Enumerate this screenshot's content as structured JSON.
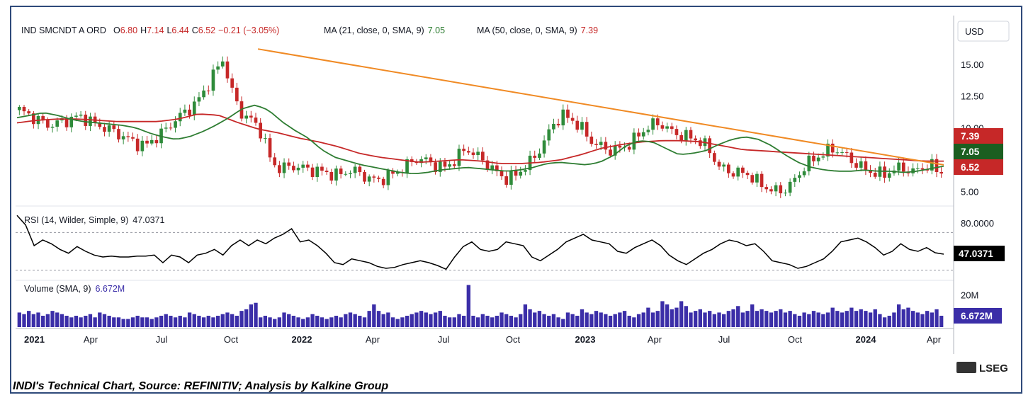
{
  "header": {
    "symbol": "IND SMCNDT A ORD",
    "o_label": "O",
    "o_value": "6.80",
    "h_label": "H",
    "h_value": "7.14",
    "l_label": "L",
    "l_value": "6.44",
    "c_label": "C",
    "c_value": "6.52",
    "change": "−0.21 (−3.05%)",
    "ma21_label": "MA (21, close, 0, SMA, 9)",
    "ma21_value": "7.05",
    "ma50_label": "MA (50, close, 0, SMA, 9)",
    "ma50_value": "7.39"
  },
  "currency": "USD",
  "rsi_label": "RSI (14, Wilder, Simple, 9)",
  "rsi_value": "47.0371",
  "volume_label": "Volume (SMA, 9)",
  "volume_value": "6.672M",
  "badges": {
    "ma50": "7.39",
    "ma21": "7.05",
    "close": "6.52",
    "rsi": "47.0371",
    "volume": "6.672M"
  },
  "brand": "LSEG",
  "caption": "INDI's Technical Chart, Source: REFINITIV; Analysis by Kalkine Group",
  "colors": {
    "up": "#2e8b3a",
    "down": "#c62828",
    "ma21": "#2e7d32",
    "ma50": "#c62828",
    "trendline": "#f08a24",
    "rsi": "#000000",
    "volume": "#3b2ea8",
    "frame": "#2f4a7a"
  },
  "chart_data": [
    {
      "type": "candlestick",
      "title": "IND SMCNDT A ORD",
      "x_ticks": [
        "2021",
        "Apr",
        "Jul",
        "Oct",
        "2022",
        "Apr",
        "Jul",
        "Oct",
        "2023",
        "Apr",
        "Jul",
        "Oct",
        "2024",
        "Apr"
      ],
      "y_ticks": [
        "15.00",
        "12.50",
        "10.00",
        "5.00"
      ],
      "ylim": [
        4.2,
        16.6
      ],
      "close_path": [
        11.4,
        11.0,
        10.6,
        10.2,
        10.4,
        10.6,
        10.9,
        10.7,
        10.2,
        10.0,
        9.6,
        9.2,
        8.8,
        8.6,
        9.2,
        9.8,
        10.6,
        11.2,
        11.8,
        12.8,
        14.2,
        15.4,
        12.6,
        11.0,
        10.6,
        9.6,
        7.2,
        6.8,
        7.0,
        6.9,
        6.7,
        6.6,
        6.4,
        6.3,
        6.7,
        6.5,
        6.0,
        5.9,
        6.2,
        6.6,
        7.1,
        7.6,
        7.4,
        7.0,
        6.9,
        7.6,
        8.4,
        7.9,
        7.3,
        6.6,
        6.0,
        6.2,
        6.9,
        7.6,
        8.8,
        10.3,
        11.0,
        10.6,
        9.9,
        8.9,
        8.5,
        8.2,
        8.4,
        8.8,
        9.6,
        10.2,
        10.4,
        9.8,
        9.4,
        9.3,
        9.0,
        8.4,
        7.0,
        6.6,
        6.5,
        6.4,
        5.8,
        5.3,
        5.0,
        5.2,
        6.0,
        7.1,
        7.6,
        8.1,
        8.4,
        7.9,
        7.3,
        6.8,
        6.5,
        6.3,
        6.7,
        6.9,
        6.5,
        6.9,
        7.0,
        6.52
      ],
      "ma21_path": [
        10.8,
        11.0,
        11.2,
        11.0,
        10.7,
        10.5,
        10.4,
        10.3,
        10.2,
        10.0,
        9.6,
        9.3,
        9.1,
        9.3,
        9.7,
        10.2,
        10.8,
        11.5,
        11.8,
        11.4,
        10.5,
        9.8,
        9.2,
        8.3,
        7.7,
        7.4,
        7.1,
        6.9,
        6.7,
        6.5,
        6.4,
        6.5,
        6.7,
        6.8,
        6.9,
        6.8,
        6.7,
        6.6,
        6.7,
        6.9,
        7.2,
        7.3,
        7.2,
        7.1,
        7.3,
        7.8,
        8.6,
        9.0,
        8.9,
        8.4,
        7.9,
        8.0,
        8.2,
        8.7,
        9.1,
        9.3,
        9.1,
        8.6,
        7.9,
        7.3,
        6.9,
        6.7,
        6.6,
        6.6,
        6.7,
        6.6,
        6.6,
        6.5,
        6.6,
        6.8,
        7.0
      ],
      "ma50_path": [
        10.4,
        10.6,
        10.7,
        10.7,
        10.6,
        10.5,
        10.5,
        10.5,
        10.7,
        11.1,
        11.0,
        10.4,
        9.9,
        9.6,
        9.2,
        8.9,
        8.5,
        8.0,
        7.7,
        7.5,
        7.3,
        7.4,
        7.5,
        7.4,
        7.2,
        7.2,
        7.3,
        7.5,
        7.9,
        8.4,
        8.7,
        8.9,
        9.0,
        9.0,
        8.9,
        8.6,
        8.3,
        8.2,
        8.1,
        8.0,
        7.9,
        7.8,
        7.7,
        7.6,
        7.5,
        7.4,
        7.39
      ],
      "trendline": [
        [
          0.26,
          16.2
        ],
        [
          1.0,
          7.1
        ]
      ],
      "last_values": {
        "ma50": 7.39,
        "ma21": 7.05,
        "close": 6.52
      }
    },
    {
      "type": "line",
      "title": "RSI (14, Wilder, Simple, 9)",
      "y_ticks": [
        "80.0000"
      ],
      "ylim": [
        20,
        95
      ],
      "guide_levels": [
        70,
        30
      ],
      "values": [
        88,
        78,
        56,
        62,
        58,
        52,
        48,
        55,
        50,
        46,
        44,
        45,
        44,
        44,
        45,
        45,
        46,
        38,
        46,
        44,
        38,
        46,
        48,
        52,
        46,
        56,
        62,
        56,
        62,
        58,
        64,
        68,
        74,
        60,
        62,
        56,
        48,
        38,
        36,
        42,
        40,
        38,
        34,
        32,
        33,
        36,
        38,
        40,
        38,
        35,
        31,
        44,
        55,
        60,
        52,
        50,
        52,
        60,
        58,
        56,
        44,
        40,
        46,
        52,
        60,
        64,
        68,
        62,
        60,
        58,
        50,
        48,
        54,
        58,
        62,
        56,
        46,
        40,
        36,
        42,
        48,
        52,
        58,
        62,
        60,
        56,
        58,
        50,
        40,
        38,
        36,
        32,
        34,
        38,
        42,
        50,
        60,
        62,
        64,
        60,
        54,
        46,
        50,
        58,
        52,
        50,
        54,
        48.5,
        47
      ]
    },
    {
      "type": "bar",
      "title": "Volume (SMA, 9)",
      "y_ticks": [
        "20M"
      ],
      "ylim": [
        0,
        28
      ],
      "values": [
        9,
        8,
        10,
        8,
        9,
        7,
        8,
        10,
        9,
        8,
        7,
        6,
        7,
        6,
        7,
        8,
        6,
        9,
        8,
        7,
        6,
        6,
        5,
        5,
        6,
        7,
        6,
        6,
        5,
        6,
        7,
        8,
        7,
        6,
        7,
        6,
        9,
        8,
        7,
        6,
        7,
        6,
        7,
        8,
        9,
        8,
        7,
        10,
        11,
        14,
        15,
        6,
        7,
        6,
        5,
        6,
        9,
        8,
        7,
        6,
        5,
        6,
        8,
        7,
        6,
        5,
        6,
        7,
        6,
        8,
        9,
        8,
        7,
        6,
        10,
        14,
        10,
        8,
        9,
        6,
        5,
        6,
        7,
        8,
        9,
        10,
        9,
        8,
        9,
        10,
        7,
        6,
        6,
        8,
        7,
        26,
        7,
        6,
        8,
        7,
        6,
        7,
        9,
        8,
        7,
        6,
        8,
        14,
        11,
        9,
        10,
        8,
        7,
        8,
        6,
        5,
        9,
        8,
        7,
        11,
        9,
        8,
        10,
        9,
        8,
        7,
        8,
        9,
        10,
        7,
        6,
        8,
        9,
        12,
        9,
        10,
        16,
        14,
        11,
        12,
        16,
        13,
        9,
        10,
        11,
        9,
        10,
        8,
        9,
        8,
        10,
        11,
        13,
        9,
        10,
        14,
        10,
        11,
        10,
        9,
        10,
        11,
        9,
        10,
        8,
        7,
        9,
        8,
        10,
        9,
        8,
        9,
        12,
        10,
        9,
        10,
        12,
        10,
        11,
        10,
        9,
        11,
        8,
        6,
        7,
        9,
        14,
        11,
        12,
        10,
        9,
        8,
        10,
        9,
        11,
        7
      ]
    }
  ]
}
